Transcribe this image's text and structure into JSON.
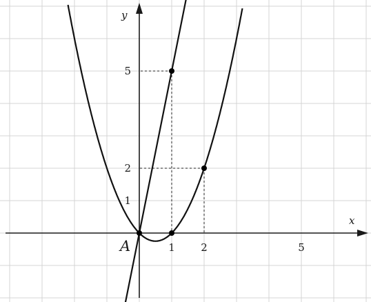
{
  "chart_data": {
    "type": "line",
    "title": "",
    "xlabel": "x",
    "ylabel": "y",
    "xlim": [
      -4.25,
      7
    ],
    "ylim": [
      -2,
      7
    ],
    "grid": true,
    "x_ticks": [
      1,
      2,
      5
    ],
    "x_tick_labels": [
      "1",
      "2",
      "5"
    ],
    "y_ticks": [
      1,
      2,
      5
    ],
    "y_tick_labels": [
      "1",
      "2",
      "5"
    ],
    "series": [
      {
        "kind": "parabola",
        "equation": "y = x^2 - x",
        "color": "#111111"
      },
      {
        "kind": "straight-line",
        "equation": "y = 5x",
        "color": "#111111"
      }
    ],
    "points": [
      {
        "x": 0,
        "y": 0,
        "label": "A"
      },
      {
        "x": 1,
        "y": 0,
        "label": ""
      },
      {
        "x": 1,
        "y": 5,
        "label": ""
      },
      {
        "x": 2,
        "y": 2,
        "label": ""
      }
    ],
    "guides": [
      {
        "from": [
          1,
          5
        ],
        "to": [
          0,
          5
        ]
      },
      {
        "from": [
          1,
          5
        ],
        "to": [
          1,
          0
        ]
      },
      {
        "from": [
          2,
          2
        ],
        "to": [
          0,
          2
        ]
      },
      {
        "from": [
          2,
          2
        ],
        "to": [
          2,
          0
        ]
      }
    ]
  }
}
